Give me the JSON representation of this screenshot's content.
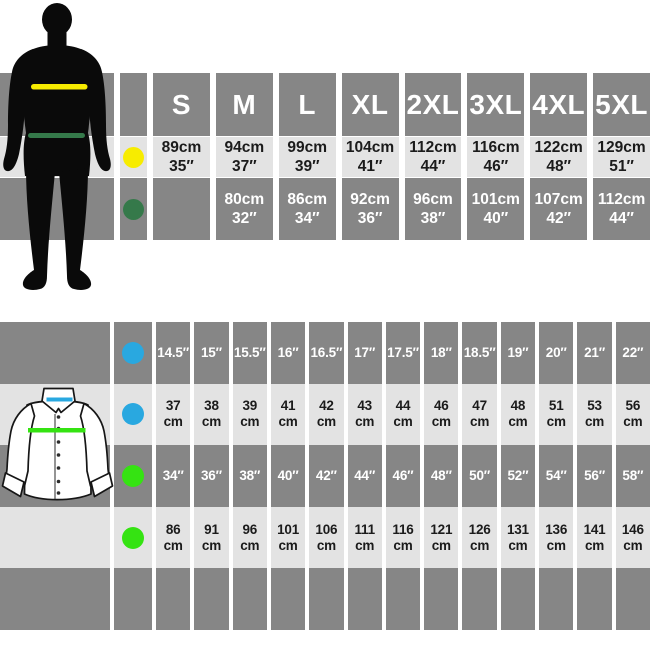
{
  "colors": {
    "row_dark": "#868686",
    "row_light": "#e3e3e3",
    "text_dark_bg": "#ffffff",
    "text_light_bg": "#1b1b1b",
    "chest_yellow": "#f7ec00",
    "waist_green": "#35794a",
    "collar_blue": "#29a8e0",
    "chest_green": "#35e312",
    "silhouette_black": "#0a0a0a",
    "shirt_outline": "#161616",
    "shirt_fill": "#ffffff"
  },
  "icons": {
    "man": "man-silhouette-icon",
    "shirt": "dress-shirt-icon",
    "chest_marker": "chest-marker-dot-icon",
    "waist_marker": "waist-marker-dot-icon",
    "collar_marker": "collar-marker-dot-icon",
    "shirt_chest_marker": "chest-marker-dot-icon"
  },
  "adult_table": {
    "size_headers": [
      "S",
      "M",
      "L",
      "XL",
      "2XL",
      "3XL",
      "4XL",
      "5XL"
    ],
    "rows": [
      {
        "marker": "chest",
        "color_key": "chest_yellow",
        "shade": "light",
        "cells": [
          [
            "89cm",
            "35″"
          ],
          [
            "94cm",
            "37″"
          ],
          [
            "99cm",
            "39″"
          ],
          [
            "104cm",
            "41″"
          ],
          [
            "112cm",
            "44″"
          ],
          [
            "116cm",
            "46″"
          ],
          [
            "122cm",
            "48″"
          ],
          [
            "129cm",
            "51″"
          ]
        ]
      },
      {
        "marker": "waist",
        "color_key": "waist_green",
        "shade": "dark",
        "cells": [
          [
            "",
            ""
          ],
          [
            "80cm",
            "32″"
          ],
          [
            "86cm",
            "34″"
          ],
          [
            "92cm",
            "36″"
          ],
          [
            "96cm",
            "38″"
          ],
          [
            "101cm",
            "40″"
          ],
          [
            "107cm",
            "42″"
          ],
          [
            "112cm",
            "44″"
          ]
        ]
      }
    ]
  },
  "shirt_table": {
    "columns": 13,
    "rows": [
      {
        "marker": "collar",
        "color_key": "collar_blue",
        "shade": "dark",
        "cells": [
          [
            "14.5″"
          ],
          [
            "15″"
          ],
          [
            "15.5″"
          ],
          [
            "16″"
          ],
          [
            "16.5″"
          ],
          [
            "17″"
          ],
          [
            "17.5″"
          ],
          [
            "18″"
          ],
          [
            "18.5″"
          ],
          [
            "19″"
          ],
          [
            "20″"
          ],
          [
            "21″"
          ],
          [
            "22″"
          ]
        ]
      },
      {
        "marker": "collar",
        "color_key": "collar_blue",
        "shade": "light",
        "cells": [
          [
            "37",
            "cm"
          ],
          [
            "38",
            "cm"
          ],
          [
            "39",
            "cm"
          ],
          [
            "41",
            "cm"
          ],
          [
            "42",
            "cm"
          ],
          [
            "43",
            "cm"
          ],
          [
            "44",
            "cm"
          ],
          [
            "46",
            "cm"
          ],
          [
            "47",
            "cm"
          ],
          [
            "48",
            "cm"
          ],
          [
            "51",
            "cm"
          ],
          [
            "53",
            "cm"
          ],
          [
            "56",
            "cm"
          ]
        ]
      },
      {
        "marker": "chest",
        "color_key": "chest_green",
        "shade": "dark",
        "cells": [
          [
            "34″"
          ],
          [
            "36″"
          ],
          [
            "38″"
          ],
          [
            "40″"
          ],
          [
            "42″"
          ],
          [
            "44″"
          ],
          [
            "46″"
          ],
          [
            "48″"
          ],
          [
            "50″"
          ],
          [
            "52″"
          ],
          [
            "54″"
          ],
          [
            "56″"
          ],
          [
            "58″"
          ]
        ]
      },
      {
        "marker": "chest",
        "color_key": "chest_green",
        "shade": "light",
        "cells": [
          [
            "86",
            "cm"
          ],
          [
            "91",
            "cm"
          ],
          [
            "96",
            "cm"
          ],
          [
            "101",
            "cm"
          ],
          [
            "106",
            "cm"
          ],
          [
            "111",
            "cm"
          ],
          [
            "116",
            "cm"
          ],
          [
            "121",
            "cm"
          ],
          [
            "126",
            "cm"
          ],
          [
            "131",
            "cm"
          ],
          [
            "136",
            "cm"
          ],
          [
            "141",
            "cm"
          ],
          [
            "146",
            "cm"
          ]
        ]
      },
      {
        "marker": "",
        "color_key": "",
        "shade": "dark",
        "cells": []
      }
    ]
  },
  "chart_data": [
    {
      "type": "table",
      "columns": [
        "S",
        "M",
        "L",
        "XL",
        "2XL",
        "3XL",
        "4XL",
        "5XL"
      ],
      "rows": [
        {
          "label": "chest (yellow marker)",
          "values_cm": [
            89,
            94,
            99,
            104,
            112,
            116,
            122,
            129
          ],
          "values_in": [
            35,
            37,
            39,
            41,
            44,
            46,
            48,
            51
          ]
        },
        {
          "label": "waist (green marker)",
          "values_cm": [
            null,
            80,
            86,
            92,
            96,
            101,
            107,
            112
          ],
          "values_in": [
            null,
            32,
            34,
            36,
            38,
            40,
            42,
            44
          ]
        }
      ],
      "legend_position": "left column dots matching body measurement lines"
    },
    {
      "type": "table",
      "rows": [
        {
          "label": "collar (blue marker), inches",
          "values": [
            14.5,
            15,
            15.5,
            16,
            16.5,
            17,
            17.5,
            18,
            18.5,
            19,
            20,
            21,
            22
          ]
        },
        {
          "label": "collar (blue marker), cm",
          "values": [
            37,
            38,
            39,
            41,
            42,
            43,
            44,
            46,
            47,
            48,
            51,
            53,
            56
          ]
        },
        {
          "label": "chest (green marker), inches",
          "values": [
            34,
            36,
            38,
            40,
            42,
            44,
            46,
            48,
            50,
            52,
            54,
            56,
            58
          ]
        },
        {
          "label": "chest (green marker), cm",
          "values": [
            86,
            91,
            96,
            101,
            106,
            111,
            116,
            121,
            126,
            131,
            136,
            141,
            146
          ]
        }
      ],
      "legend_position": "left column dots matching shirt measurement lines"
    }
  ]
}
